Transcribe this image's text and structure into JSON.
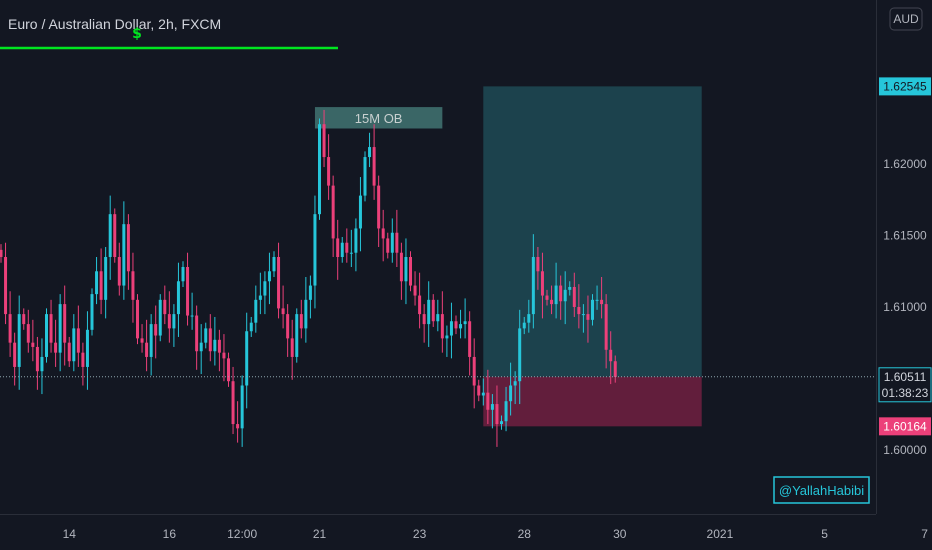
{
  "header": {
    "title": "Euro / Australian Dollar, 2h, FXCM",
    "alert_glyph": "$",
    "currency_button": "AUD"
  },
  "colors": {
    "background": "#131722",
    "up": "#26c6da",
    "down": "#ec407a",
    "alert_line": "#00e620",
    "profit_zone": "#1e4a55",
    "loss_zone": "#6b1f3f",
    "label_ob": "#3f6f6e",
    "watermark_border": "#26c6da"
  },
  "annotations": {
    "order_block_label": "15M OB",
    "watermark": "@YallahHabibi"
  },
  "price_labels": {
    "target": "1.62545",
    "current": "1.60511",
    "countdown": "01:38:23",
    "stop": "1.60164"
  },
  "chart_data": {
    "type": "candlestick",
    "title": "Euro / Australian Dollar, 2h, FXCM",
    "ylim": [
      1.5955,
      1.6315
    ],
    "y_ticks": [
      "1.60000",
      "1.61000",
      "1.61500",
      "1.62000"
    ],
    "y_tick_values": [
      1.6,
      1.61,
      1.615,
      1.62
    ],
    "x_ticks": [
      "14",
      "16",
      "12:00",
      "21",
      "23",
      "28",
      "30",
      "2021",
      "5",
      "7"
    ],
    "x_tick_index": [
      15,
      37,
      53,
      70,
      92,
      115,
      136,
      158,
      181,
      203
    ],
    "current_price": 1.60511,
    "target_price": 1.62545,
    "stop_price": 1.60164,
    "position": {
      "entry": 1.60511,
      "target": 1.62545,
      "stop": 1.60164,
      "start_index": 106,
      "end_index": 154
    },
    "order_block": {
      "label": "15M OB",
      "low": 1.6225,
      "high": 1.624,
      "start_index": 69,
      "end_index": 97
    },
    "grid": false,
    "closes": [
      1.6135,
      1.6095,
      1.6075,
      1.6058,
      1.6095,
      1.6088,
      1.6075,
      1.6072,
      1.6055,
      1.6065,
      1.6095,
      1.6075,
      1.6068,
      1.6102,
      1.6075,
      1.6062,
      1.6085,
      1.6068,
      1.6058,
      1.6084,
      1.6109,
      1.6125,
      1.6105,
      1.6135,
      1.6165,
      1.6135,
      1.6115,
      1.6158,
      1.6125,
      1.6105,
      1.6078,
      1.6075,
      1.6065,
      1.6088,
      1.608,
      1.6105,
      1.6095,
      1.6085,
      1.6095,
      1.6118,
      1.6128,
      1.6094,
      1.6094,
      1.6069,
      1.6075,
      1.6085,
      1.6069,
      1.6077,
      1.6068,
      1.6064,
      1.6048,
      1.6018,
      1.6015,
      1.6045,
      1.6083,
      1.6089,
      1.6105,
      1.6108,
      1.6118,
      1.6125,
      1.6135,
      1.6099,
      1.6095,
      1.6078,
      1.6065,
      1.6095,
      1.6085,
      1.6105,
      1.6115,
      1.6165,
      1.6228,
      1.6205,
      1.6185,
      1.6148,
      1.6135,
      1.6145,
      1.6138,
      1.6138,
      1.6155,
      1.6178,
      1.6205,
      1.6212,
      1.6185,
      1.6155,
      1.6148,
      1.6138,
      1.6152,
      1.6138,
      1.6118,
      1.6135,
      1.6115,
      1.6108,
      1.6095,
      1.6088,
      1.6105,
      1.609,
      1.6095,
      1.6078,
      1.608,
      1.609,
      1.6085,
      1.6088,
      1.609,
      1.6065,
      1.6045,
      1.6038,
      1.604,
      1.6028,
      1.6032,
      1.6018,
      1.602,
      1.6034,
      1.6045,
      1.6048,
      1.6085,
      1.6089,
      1.6095,
      1.6135,
      1.6125,
      1.6108,
      1.6105,
      1.6102,
      1.6115,
      1.6104,
      1.6112,
      1.6114,
      1.61,
      1.6095,
      1.6095,
      1.6091,
      1.6105,
      1.6105,
      1.6102,
      1.607,
      1.6062,
      1.6051
    ],
    "opens": [
      1.614,
      1.6135,
      1.6095,
      1.6075,
      1.6058,
      1.6095,
      1.6088,
      1.6075,
      1.6072,
      1.6055,
      1.6065,
      1.6095,
      1.6075,
      1.6068,
      1.6102,
      1.6075,
      1.6062,
      1.6085,
      1.6068,
      1.6058,
      1.6084,
      1.6109,
      1.6125,
      1.6105,
      1.6135,
      1.6165,
      1.6135,
      1.6115,
      1.6158,
      1.6125,
      1.6105,
      1.6078,
      1.6075,
      1.6065,
      1.6088,
      1.608,
      1.6105,
      1.6095,
      1.6085,
      1.6095,
      1.6118,
      1.6128,
      1.6094,
      1.6094,
      1.6069,
      1.6075,
      1.6085,
      1.6069,
      1.6077,
      1.6068,
      1.6064,
      1.6048,
      1.6018,
      1.6015,
      1.6045,
      1.6083,
      1.6089,
      1.6105,
      1.6108,
      1.6118,
      1.6125,
      1.6135,
      1.6099,
      1.6095,
      1.6078,
      1.6065,
      1.6095,
      1.6085,
      1.6105,
      1.6115,
      1.6165,
      1.6228,
      1.6205,
      1.6185,
      1.6148,
      1.6135,
      1.6145,
      1.6138,
      1.6138,
      1.6155,
      1.6178,
      1.6205,
      1.6212,
      1.6185,
      1.6155,
      1.6148,
      1.6138,
      1.6152,
      1.6138,
      1.6118,
      1.6135,
      1.6115,
      1.6108,
      1.6095,
      1.6088,
      1.6105,
      1.609,
      1.6095,
      1.6078,
      1.608,
      1.609,
      1.6085,
      1.6088,
      1.609,
      1.6065,
      1.6045,
      1.6038,
      1.604,
      1.6028,
      1.6032,
      1.6018,
      1.602,
      1.6034,
      1.6045,
      1.6048,
      1.6085,
      1.6089,
      1.6095,
      1.6135,
      1.6125,
      1.6108,
      1.6105,
      1.6102,
      1.6115,
      1.6104,
      1.6112,
      1.6114,
      1.61,
      1.6095,
      1.6095,
      1.6091,
      1.6105,
      1.6105,
      1.6102,
      1.607,
      1.6062
    ]
  }
}
